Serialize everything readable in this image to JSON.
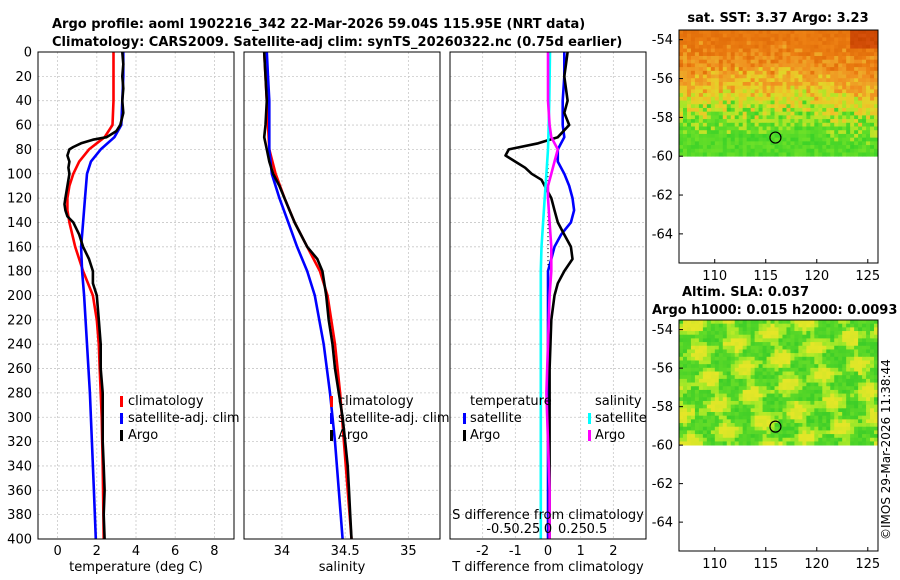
{
  "header": {
    "line1": "Argo profile: aoml 1902216_342 22-Mar-2026 59.04S 115.95E (NRT data)",
    "line2": "Climatology: CARS2009. Satellite-adj clim: synTS_20260322.nc (0.75d earlier)"
  },
  "side_label": "©IMOS 29-Mar-2026 11:38:44",
  "colors": {
    "argo": "#000000",
    "climatology": "#ff0000",
    "satellite": "#0000ff",
    "sat_salinity": "#00ffff",
    "salinity": "#ff00ff"
  },
  "chart_data": [
    {
      "type": "line",
      "id": "temperature",
      "xlabel": "temperature (deg C)",
      "ylabel": "",
      "xlim": [
        -1,
        9
      ],
      "ylim": [
        400,
        0
      ],
      "xticks": [
        0,
        2,
        4,
        6,
        8
      ],
      "xtick_labels": [
        "0",
        "2",
        "4",
        "6",
        "8"
      ],
      "yticks": [
        0,
        20,
        40,
        60,
        80,
        100,
        120,
        140,
        160,
        180,
        200,
        220,
        240,
        260,
        280,
        300,
        320,
        340,
        360,
        380,
        400
      ],
      "ytick_labels": [
        "0",
        "20",
        "40",
        "60",
        "80",
        "100",
        "120",
        "140",
        "160",
        "180",
        "200",
        "220",
        "240",
        "260",
        "280",
        "300",
        "320",
        "340",
        "360",
        "380",
        "400"
      ],
      "grid": true,
      "legend": [
        "climatology",
        "satellite-adj. clim",
        "Argo"
      ],
      "series": [
        {
          "name": "climatology",
          "color": "#ff0000",
          "depth": [
            0,
            20,
            40,
            60,
            70,
            80,
            90,
            100,
            110,
            120,
            130,
            140,
            160,
            180,
            200,
            220,
            240,
            260,
            300,
            340,
            400
          ],
          "values": [
            2.85,
            2.85,
            2.85,
            2.8,
            2.4,
            1.6,
            1.1,
            0.8,
            0.6,
            0.5,
            0.5,
            0.6,
            0.9,
            1.3,
            1.8,
            2.0,
            2.1,
            2.15,
            2.25,
            2.3,
            2.35
          ]
        },
        {
          "name": "satellite-adj. clim",
          "color": "#0000ff",
          "depth": [
            0,
            20,
            40,
            60,
            70,
            80,
            90,
            100,
            120,
            140,
            160,
            180,
            200,
            240,
            280,
            320,
            360,
            400
          ],
          "values": [
            3.35,
            3.35,
            3.3,
            3.25,
            2.9,
            2.2,
            1.7,
            1.5,
            1.4,
            1.3,
            1.2,
            1.25,
            1.35,
            1.5,
            1.65,
            1.75,
            1.85,
            1.95
          ]
        },
        {
          "name": "Argo",
          "color": "#000000",
          "depth": [
            0,
            10,
            20,
            30,
            40,
            50,
            60,
            65,
            70,
            72,
            75,
            78,
            80,
            85,
            90,
            95,
            100,
            110,
            120,
            125,
            130,
            135,
            140,
            150,
            160,
            170,
            180,
            190,
            200,
            220,
            240,
            260,
            280,
            300,
            320,
            340,
            360,
            380,
            400
          ],
          "values": [
            3.3,
            3.35,
            3.3,
            3.35,
            3.3,
            3.35,
            3.2,
            3.0,
            2.5,
            1.8,
            1.2,
            0.8,
            0.6,
            0.5,
            0.6,
            0.55,
            0.6,
            0.5,
            0.4,
            0.35,
            0.4,
            0.5,
            0.8,
            1.1,
            1.3,
            1.6,
            1.8,
            1.8,
            2.0,
            2.1,
            2.2,
            2.2,
            2.3,
            2.3,
            2.3,
            2.35,
            2.4,
            2.35,
            2.4
          ]
        }
      ]
    },
    {
      "type": "line",
      "id": "salinity",
      "xlabel": "salinity",
      "ylabel": "",
      "xlim": [
        33.7,
        35.25
      ],
      "ylim": [
        400,
        0
      ],
      "xticks": [
        34,
        34.5,
        35
      ],
      "xtick_labels": [
        "34",
        "34.5",
        "35"
      ],
      "grid": true,
      "legend": [
        "climatology",
        "satellite-adj. clim",
        "Argo"
      ],
      "series": [
        {
          "name": "climatology",
          "color": "#ff0000",
          "depth": [
            0,
            20,
            40,
            60,
            80,
            100,
            120,
            140,
            160,
            180,
            200,
            240,
            280,
            320,
            360,
            400
          ],
          "values": [
            33.86,
            33.87,
            33.88,
            33.89,
            33.9,
            33.95,
            34.02,
            34.1,
            34.2,
            34.3,
            34.36,
            34.42,
            34.46,
            34.49,
            34.52,
            34.55
          ]
        },
        {
          "name": "satellite-adj. clim",
          "color": "#0000ff",
          "depth": [
            0,
            20,
            40,
            60,
            80,
            100,
            120,
            140,
            160,
            180,
            200,
            240,
            280,
            320,
            360,
            400
          ],
          "values": [
            33.88,
            33.89,
            33.9,
            33.9,
            33.9,
            33.92,
            33.98,
            34.05,
            34.12,
            34.2,
            34.26,
            34.33,
            34.38,
            34.42,
            34.45,
            34.48
          ]
        },
        {
          "name": "Argo",
          "color": "#000000",
          "depth": [
            0,
            20,
            40,
            60,
            70,
            80,
            90,
            100,
            110,
            120,
            130,
            140,
            150,
            160,
            170,
            180,
            200,
            220,
            240,
            260,
            280,
            300,
            320,
            340,
            360,
            380,
            400
          ],
          "values": [
            33.86,
            33.87,
            33.88,
            33.87,
            33.86,
            33.88,
            33.9,
            33.93,
            33.98,
            34.02,
            34.06,
            34.1,
            34.15,
            34.2,
            34.28,
            34.32,
            34.35,
            34.37,
            34.4,
            34.42,
            34.45,
            34.48,
            34.5,
            34.52,
            34.53,
            34.54,
            34.55
          ]
        }
      ]
    },
    {
      "type": "line",
      "id": "difference",
      "xlabel": "T difference from climatology",
      "top_xlabel": "S difference from climatology",
      "xlim": [
        -3,
        3
      ],
      "ylim": [
        400,
        0
      ],
      "xticks": [
        -2,
        -1,
        0,
        1,
        2
      ],
      "xtick_labels": [
        "-2",
        "-1",
        "0",
        "1",
        "2"
      ],
      "top_xticks": [
        -1.5,
        -0.75,
        0,
        0.75,
        1.5
      ],
      "top_xtick_labels": [
        "-0.5",
        "-0.25",
        "0",
        "0.25",
        "0.5"
      ],
      "grid": true,
      "legend_left_title": "temperature",
      "legend_left": [
        "satellite",
        "Argo"
      ],
      "legend_right_title": "salinity",
      "legend_right": [
        "satellite",
        "Argo"
      ],
      "series": [
        {
          "name": "T satellite",
          "color": "#0000ff",
          "depth": [
            0,
            20,
            40,
            60,
            70,
            80,
            90,
            100,
            110,
            120,
            130,
            140,
            150,
            160,
            170,
            180,
            200,
            260,
            320,
            400
          ],
          "values": [
            0.5,
            0.5,
            0.45,
            0.45,
            0.5,
            0.3,
            0.3,
            0.5,
            0.65,
            0.75,
            0.8,
            0.7,
            0.4,
            0.2,
            0.1,
            0.0,
            0.0,
            0.0,
            0.0,
            0.0
          ]
        },
        {
          "name": "T Argo",
          "color": "#000000",
          "depth": [
            0,
            10,
            20,
            40,
            50,
            60,
            70,
            75,
            80,
            85,
            90,
            95,
            100,
            105,
            110,
            120,
            130,
            140,
            150,
            160,
            170,
            180,
            190,
            200,
            220,
            260,
            300,
            340,
            400
          ],
          "values": [
            0.6,
            0.55,
            0.5,
            0.6,
            0.5,
            0.65,
            0.3,
            -0.3,
            -1.2,
            -1.3,
            -1.0,
            -0.7,
            -0.5,
            -0.2,
            -0.1,
            0.1,
            0.2,
            0.3,
            0.5,
            0.7,
            0.75,
            0.5,
            0.3,
            0.2,
            0.1,
            0.05,
            0.05,
            0.05,
            0.05
          ]
        },
        {
          "name": "S satellite",
          "color": "#00ffff",
          "depth": [
            0,
            40,
            60,
            80,
            100,
            120,
            140,
            160,
            180,
            200,
            240,
            280,
            320,
            360,
            400
          ],
          "values": [
            0.06,
            0.04,
            0.02,
            0.0,
            -0.05,
            -0.1,
            -0.15,
            -0.2,
            -0.22,
            -0.22,
            -0.22,
            -0.22,
            -0.22,
            -0.22,
            -0.22
          ]
        },
        {
          "name": "S Argo",
          "color": "#ff00ff",
          "depth": [
            0,
            20,
            40,
            60,
            70,
            80,
            90,
            100,
            110,
            120,
            140,
            160,
            180,
            200,
            240,
            280,
            320,
            360,
            400
          ],
          "values": [
            0.0,
            0.0,
            0.0,
            0.05,
            0.1,
            0.3,
            0.2,
            0.1,
            0.0,
            0.0,
            0.05,
            0.1,
            0.1,
            0.05,
            0.0,
            -0.05,
            0.0,
            0.05,
            0.05
          ]
        }
      ]
    },
    {
      "type": "heatmap",
      "id": "sst_map",
      "title": "sat. SST: 3.37 Argo: 3.23",
      "xlim": [
        106.5,
        126
      ],
      "ylim": [
        -65.5,
        -53.5
      ],
      "xticks": [
        110,
        115,
        120,
        125
      ],
      "xtick_labels": [
        "110",
        "115",
        "120",
        "125"
      ],
      "yticks": [
        -54,
        -56,
        -58,
        -60,
        -62,
        -64
      ],
      "ytick_labels": [
        "-54",
        "-56",
        "-58",
        "-60",
        "-62",
        "-64"
      ],
      "data_extent_lat": [
        -60,
        -53.5
      ],
      "marker": {
        "lon": 115.95,
        "lat": -59.04
      }
    },
    {
      "type": "heatmap",
      "id": "sla_map",
      "title_line1": "Altim. SLA: 0.037",
      "title_line2": "Argo h1000: 0.015 h2000: 0.0093",
      "xlim": [
        106.5,
        126
      ],
      "ylim": [
        -65.5,
        -53.5
      ],
      "xticks": [
        110,
        115,
        120,
        125
      ],
      "xtick_labels": [
        "110",
        "115",
        "120",
        "125"
      ],
      "yticks": [
        -54,
        -56,
        -58,
        -60,
        -62,
        -64
      ],
      "ytick_labels": [
        "-54",
        "-56",
        "-58",
        "-60",
        "-62",
        "-64"
      ],
      "data_extent_lat": [
        -60,
        -53.5
      ],
      "marker": {
        "lon": 115.95,
        "lat": -59.04
      }
    }
  ]
}
